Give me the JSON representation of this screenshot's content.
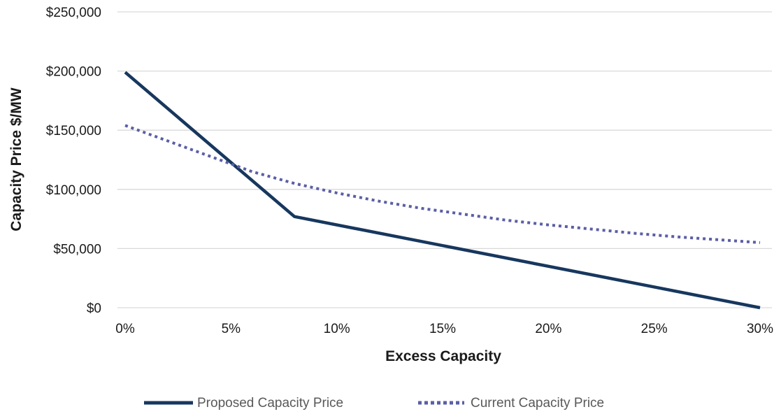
{
  "chart_data": {
    "type": "line",
    "xlabel": "Excess Capacity",
    "ylabel": "Capacity Price $/MW",
    "x_tick_labels": [
      "0%",
      "5%",
      "10%",
      "15%",
      "20%",
      "25%",
      "30%"
    ],
    "y_tick_labels": [
      "$0",
      "$50,000",
      "$100,000",
      "$150,000",
      "$200,000",
      "$250,000"
    ],
    "xlim": [
      0,
      30
    ],
    "ylim": [
      0,
      250000
    ],
    "x_unit": "percent",
    "grid": "horizontal",
    "legend": "bottom",
    "series": [
      {
        "name": "Proposed Capacity Price",
        "style": "solid",
        "color": "#17375e",
        "points": [
          [
            0,
            199000
          ],
          [
            8,
            77000
          ],
          [
            30,
            0
          ]
        ]
      },
      {
        "name": "Current Capacity Price",
        "style": "dotted",
        "color": "#5b5ea6",
        "points": [
          [
            0,
            154000
          ],
          [
            2,
            141000
          ],
          [
            4,
            128000
          ],
          [
            6,
            115000
          ],
          [
            8,
            105000
          ],
          [
            10,
            97000
          ],
          [
            12,
            90000
          ],
          [
            14,
            84000
          ],
          [
            16,
            79000
          ],
          [
            18,
            74000
          ],
          [
            20,
            70000
          ],
          [
            22,
            66500
          ],
          [
            24,
            63000
          ],
          [
            26,
            60000
          ],
          [
            28,
            57500
          ],
          [
            30,
            55000
          ]
        ]
      }
    ]
  }
}
